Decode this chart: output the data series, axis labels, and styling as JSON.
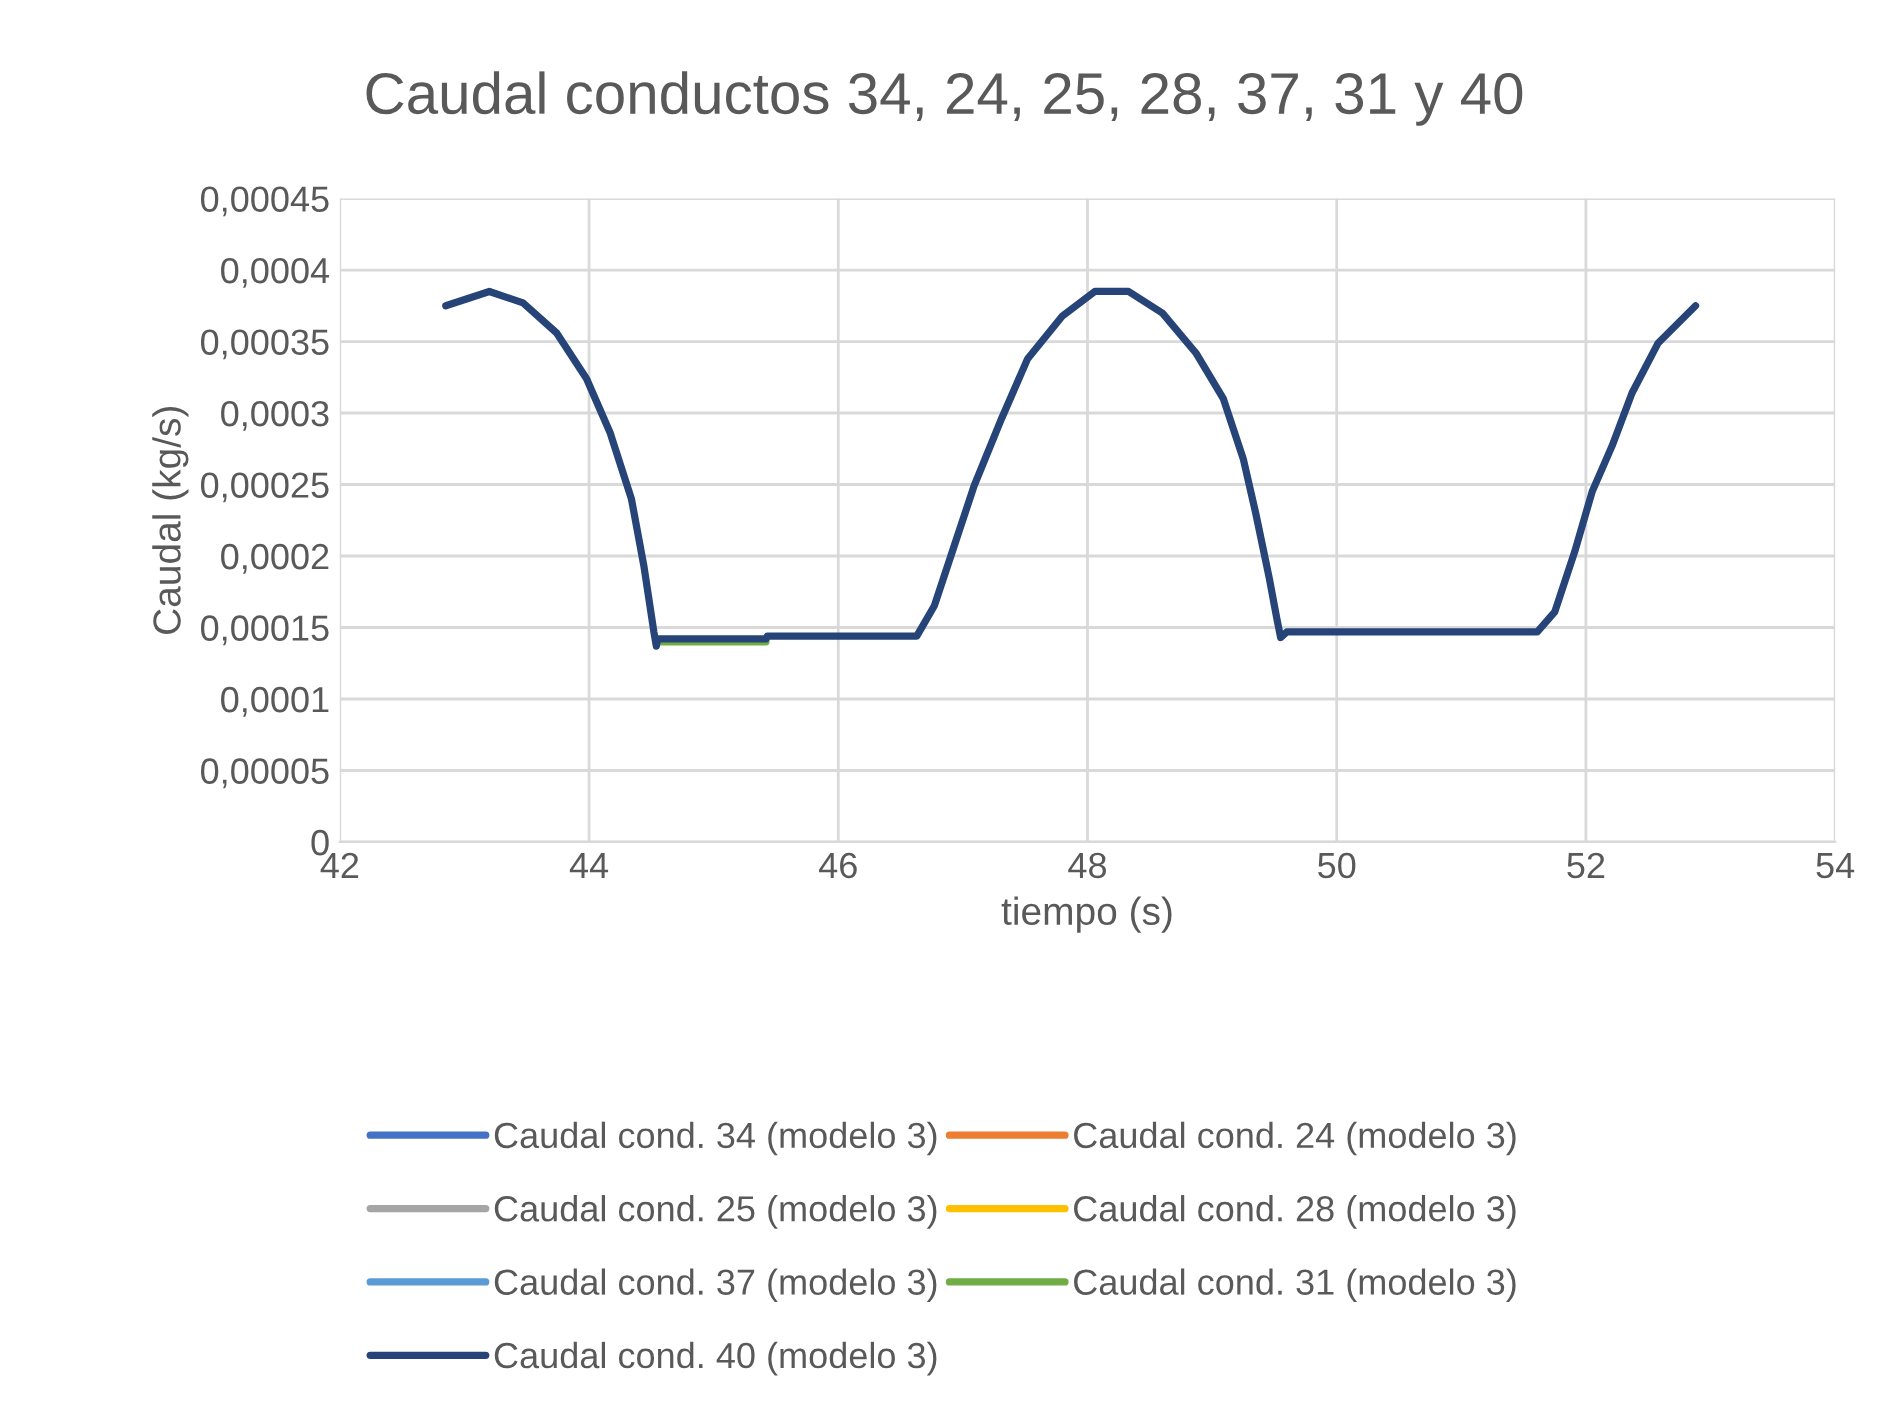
{
  "chart_data": {
    "type": "line",
    "title": "Caudal conductos 34, 24, 25, 28, 37, 31 y 40",
    "xlabel": "tiempo (s)",
    "ylabel": "Caudal (kg/s)",
    "x": [
      42.85,
      43.2,
      43.47,
      43.74,
      43.98,
      44.17,
      44.34,
      44.44,
      44.52,
      44.54,
      44.55,
      45.42,
      45.43,
      46.63,
      46.77,
      46.93,
      47.09,
      47.31,
      47.52,
      47.8,
      48.06,
      48.33,
      48.6,
      48.87,
      49.09,
      49.25,
      49.35,
      49.46,
      49.52,
      49.55,
      49.6,
      51.61,
      51.75,
      51.91,
      52.05,
      52.21,
      52.37,
      52.58,
      52.88
    ],
    "series": [
      {
        "name": "Caudal cond. 34 (modelo 3)",
        "color": "#4472c4",
        "values": [
          null,
          null,
          null,
          null,
          null,
          null,
          null,
          null,
          null,
          null,
          null,
          null,
          null,
          null,
          null,
          null,
          null,
          null,
          null,
          null,
          null,
          null,
          null,
          null,
          null,
          null,
          null,
          null,
          null,
          null,
          null,
          null,
          null,
          null,
          null,
          null,
          null,
          null,
          null
        ]
      },
      {
        "name": "Caudal cond. 24 (modelo 3)",
        "color": "#ed7d31",
        "values": [
          null,
          null,
          null,
          null,
          null,
          null,
          null,
          null,
          null,
          null,
          null,
          null,
          null,
          null,
          null,
          null,
          null,
          null,
          null,
          null,
          null,
          null,
          null,
          null,
          null,
          null,
          null,
          null,
          null,
          null,
          null,
          null,
          null,
          null,
          null,
          null,
          null,
          null,
          null
        ]
      },
      {
        "name": "Caudal cond. 25 (modelo 3)",
        "color": "#a5a5a5",
        "values": [
          null,
          null,
          null,
          null,
          null,
          null,
          null,
          null,
          null,
          null,
          null,
          null,
          null,
          null,
          null,
          null,
          null,
          null,
          null,
          null,
          null,
          null,
          null,
          null,
          null,
          null,
          null,
          null,
          null,
          null,
          null,
          null,
          null,
          null,
          null,
          null,
          null,
          null,
          null
        ]
      },
      {
        "name": "Caudal cond. 28 (modelo 3)",
        "color": "#ffc000",
        "values": [
          null,
          null,
          null,
          null,
          null,
          null,
          null,
          null,
          null,
          null,
          null,
          null,
          null,
          null,
          null,
          null,
          null,
          null,
          null,
          null,
          null,
          null,
          null,
          null,
          null,
          null,
          null,
          null,
          null,
          null,
          null,
          null,
          null,
          null,
          null,
          null,
          null,
          null,
          null
        ]
      },
      {
        "name": "Caudal cond. 37 (modelo 3)",
        "color": "#5b9bd5",
        "values": [
          null,
          null,
          null,
          null,
          null,
          null,
          null,
          null,
          null,
          null,
          null,
          null,
          null,
          null,
          null,
          null,
          null,
          null,
          null,
          null,
          null,
          null,
          null,
          null,
          null,
          null,
          null,
          null,
          null,
          null,
          null,
          null,
          null,
          null,
          null,
          null,
          null,
          null,
          null
        ]
      },
      {
        "name": "Caudal cond. 31 (modelo 3)",
        "color": "#70ad47",
        "values": [
          null,
          null,
          null,
          null,
          null,
          null,
          null,
          null,
          null,
          null,
          0.00014,
          0.00014,
          null,
          null,
          null,
          null,
          null,
          null,
          null,
          null,
          null,
          null,
          null,
          null,
          null,
          null,
          null,
          null,
          null,
          null,
          null,
          null,
          null,
          null,
          null,
          null,
          null,
          null,
          null
        ]
      },
      {
        "name": "Caudal cond. 40 (modelo 3)",
        "color": "#264478",
        "values": [
          0.000375,
          0.000385,
          0.000377,
          0.000356,
          0.000324,
          0.000286,
          0.00024,
          0.000193,
          0.000147,
          0.000137,
          0.000142,
          0.000142,
          0.000144,
          0.000144,
          0.000165,
          0.000207,
          0.000249,
          0.000296,
          0.000338,
          0.000368,
          0.000385,
          0.000385,
          0.00037,
          0.000342,
          0.00031,
          0.000268,
          0.00023,
          0.000184,
          0.000156,
          0.000143,
          0.000147,
          0.000147,
          0.000161,
          0.000203,
          0.000245,
          0.000277,
          0.000314,
          0.000349,
          0.000375
        ]
      }
    ],
    "xlim": [
      42,
      54
    ],
    "xticks": [
      42,
      44,
      46,
      48,
      50,
      52,
      54
    ],
    "ylim": [
      0,
      0.00045
    ],
    "yticks": [
      {
        "value": 0,
        "label": "0"
      },
      {
        "value": 5e-05,
        "label": "0,00005"
      },
      {
        "value": 0.0001,
        "label": "0,0001"
      },
      {
        "value": 0.00015,
        "label": "0,00015"
      },
      {
        "value": 0.0002,
        "label": "0,0002"
      },
      {
        "value": 0.00025,
        "label": "0,00025"
      },
      {
        "value": 0.0003,
        "label": "0,0003"
      },
      {
        "value": 0.00035,
        "label": "0,00035"
      },
      {
        "value": 0.0004,
        "label": "0,0004"
      },
      {
        "value": 0.00045,
        "label": "0,00045"
      }
    ],
    "grid": true,
    "legend": "bottom",
    "marker": "none",
    "line_style": "solid"
  }
}
